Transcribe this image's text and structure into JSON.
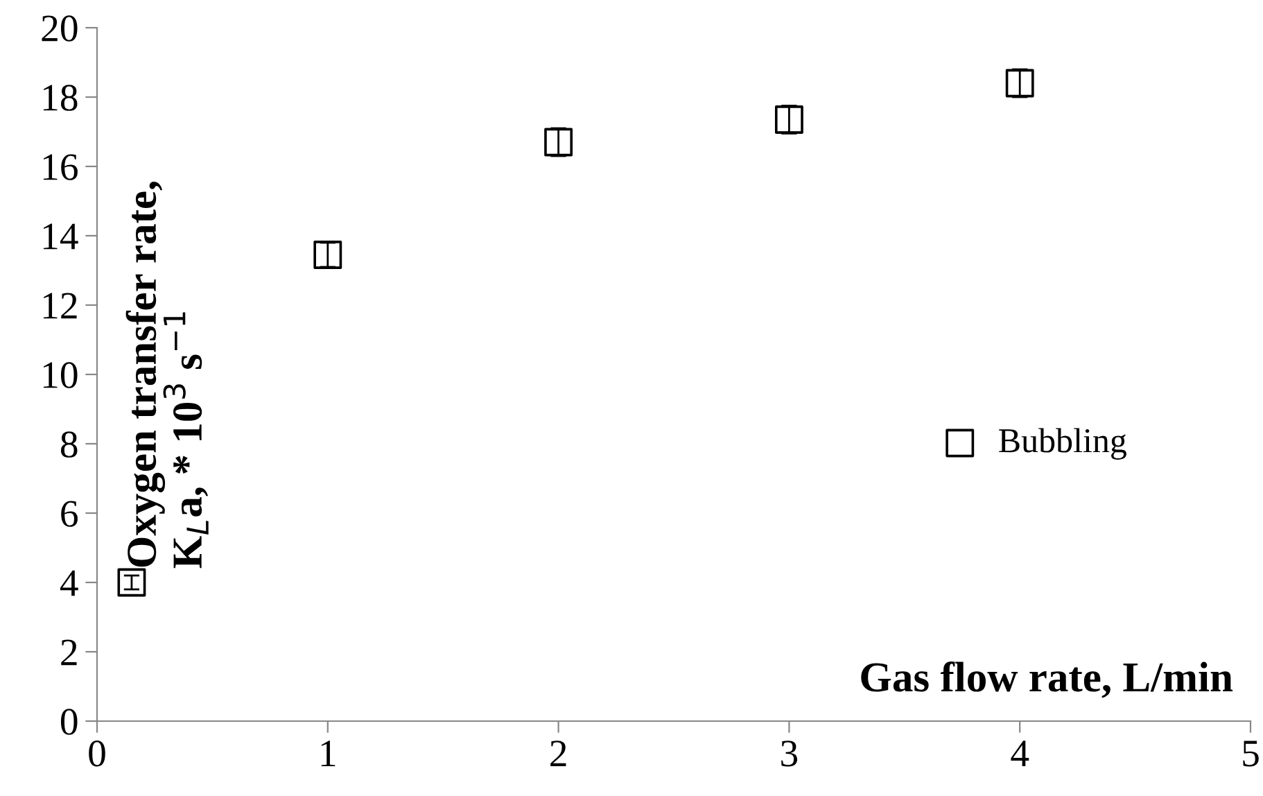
{
  "chart_data": {
    "type": "scatter",
    "xlabel": "Gas flow rate, L/min",
    "ylabel": "Oxygen transfer rate,\nK$_{L}$a, * 10$^{3}$ s$^{−1}$",
    "x": [
      0.15,
      1,
      2,
      3,
      4
    ],
    "series": [
      {
        "name": "Bubbling",
        "color": "#000000",
        "values": [
          4.0,
          13.45,
          16.7,
          17.35,
          18.4
        ],
        "errors": [
          0.2,
          0.35,
          0.4,
          0.4,
          0.4
        ]
      }
    ],
    "marker": "square",
    "legend": "right",
    "grid": false,
    "xlim": [
      0,
      5
    ],
    "xticks": [
      0,
      1,
      2,
      3,
      4,
      5
    ],
    "ylim": [
      0,
      20
    ],
    "yticks": [
      0,
      2,
      4,
      6,
      8,
      10,
      12,
      14,
      16,
      18,
      20
    ]
  }
}
